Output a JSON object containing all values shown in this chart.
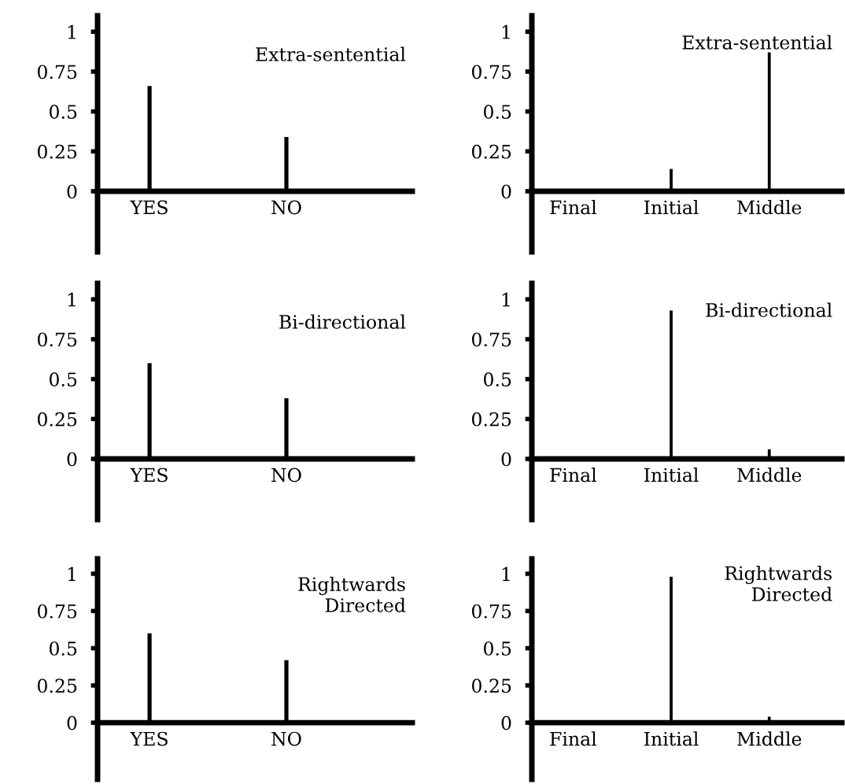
{
  "chart_data": [
    {
      "type": "bar",
      "title": "Extra-sentential",
      "categories": [
        "YES",
        "NO"
      ],
      "values": [
        0.66,
        0.34
      ],
      "color": "#000000",
      "ylim": [
        -0.38,
        1.1
      ],
      "yticks": [
        0,
        0.25,
        0.5,
        0.75,
        1
      ],
      "grid": false
    },
    {
      "type": "bar",
      "title": "Extra-sentential",
      "categories": [
        "Final",
        "Initial",
        "Middle"
      ],
      "values": [
        0,
        0.14,
        0.87
      ],
      "color": "#000000",
      "ylim": [
        -0.38,
        1.1
      ],
      "yticks": [
        0,
        0.25,
        0.5,
        0.75,
        1
      ],
      "grid": false
    },
    {
      "type": "bar",
      "title": "Bi-directional",
      "categories": [
        "YES",
        "NO"
      ],
      "values": [
        0.6,
        0.38
      ],
      "color": "#000000",
      "ylim": [
        -0.38,
        1.1
      ],
      "yticks": [
        0,
        0.25,
        0.5,
        0.75,
        1
      ],
      "grid": false
    },
    {
      "type": "bar",
      "title": "Bi-directional",
      "categories": [
        "Final",
        "Initial",
        "Middle"
      ],
      "values": [
        0,
        0.93,
        0.06
      ],
      "color": "#000000",
      "ylim": [
        -0.38,
        1.1
      ],
      "yticks": [
        0,
        0.25,
        0.5,
        0.75,
        1
      ],
      "grid": false
    },
    {
      "type": "bar",
      "title": "Rightwards\nDirected",
      "categories": [
        "YES",
        "NO"
      ],
      "values": [
        0.6,
        0.42
      ],
      "color": "#000000",
      "ylim": [
        -0.38,
        1.1
      ],
      "yticks": [
        0,
        0.25,
        0.5,
        0.75,
        1
      ],
      "grid": false
    },
    {
      "type": "bar",
      "title": "Rightwards\nDirected",
      "categories": [
        "Final",
        "Initial",
        "Middle"
      ],
      "values": [
        0,
        0.98,
        0.04
      ],
      "color": "#000000",
      "ylim": [
        -0.38,
        1.1
      ],
      "yticks": [
        0,
        0.25,
        0.5,
        0.75,
        1
      ],
      "grid": false
    }
  ]
}
